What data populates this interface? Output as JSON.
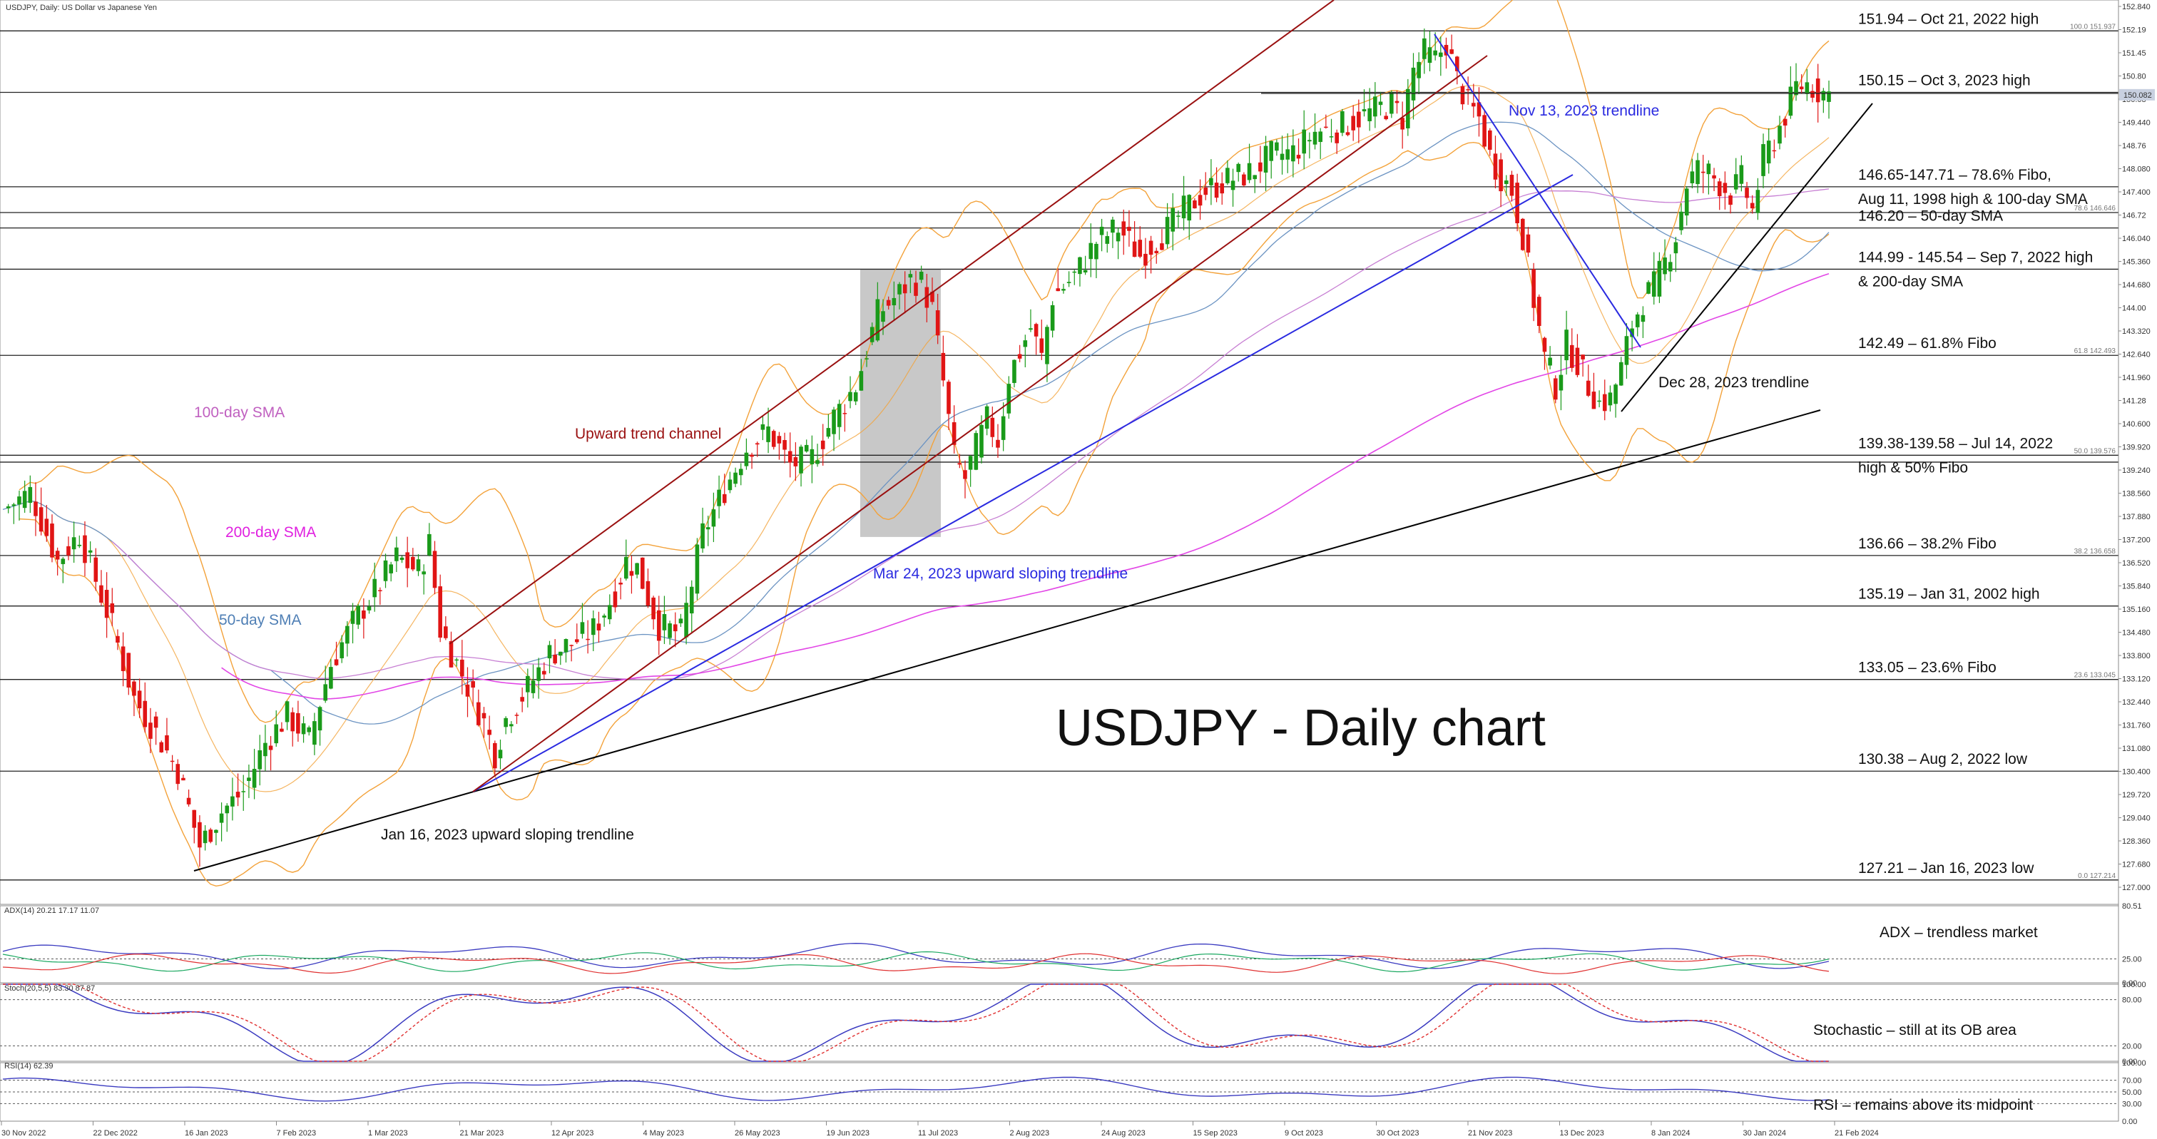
{
  "header": {
    "symbol_line": "USDJPY, Daily:  US Dollar vs Japanese Yen",
    "adx_line": "ADX(14) 20.21 17.17 11.07",
    "stoch_line": "Stoch(20,5,5) 83.30 87.87",
    "rsi_line": "RSI(14) 62.39"
  },
  "chart_data": {
    "type": "candlestick",
    "title": "USDJPY - Daily chart",
    "xlabel": "",
    "ylabel": "",
    "ylim": [
      126.5,
      152.84
    ],
    "price_ticks": [
      "152.840",
      "152.19",
      "151.45",
      "150.80",
      "150.08",
      "149.440",
      "148.76",
      "148.080",
      "147.400",
      "146.72",
      "146.040",
      "145.360",
      "144.680",
      "144.00",
      "143.320",
      "142.640",
      "141.960",
      "141.28",
      "140.600",
      "139.920",
      "139.240",
      "138.560",
      "137.880",
      "137.200",
      "136.520",
      "135.840",
      "135.160",
      "134.480",
      "133.800",
      "133.120",
      "132.440",
      "131.760",
      "131.080",
      "130.400",
      "129.720",
      "129.040",
      "128.360",
      "127.680",
      "127.000"
    ],
    "current_price": "150.082",
    "x_ticks": [
      "30 Nov 2022",
      "22 Dec 2022",
      "16 Jan 2023",
      "7 Feb 2023",
      "1 Mar 2023",
      "21 Mar 2023",
      "12 Apr 2023",
      "4 May 2023",
      "26 May 2023",
      "19 Jun 2023",
      "11 Jul 2023",
      "2 Aug 2023",
      "24 Aug 2023",
      "15 Sep 2023",
      "9 Oct 2023",
      "30 Oct 2023",
      "21 Nov 2023",
      "13 Dec 2023",
      "8 Jan 2024",
      "30 Jan 2024",
      "21 Feb 2024"
    ],
    "horizontal_levels": [
      {
        "price": 151.94,
        "label": "151.94 – Oct 21, 2022 high",
        "fibo": "100.0 151.937"
      },
      {
        "price": 150.15,
        "label": "150.15 – Oct 3, 2023 high",
        "fibo": ""
      },
      {
        "price": 147.4,
        "label": "146.65-147.71 – 78.6% Fibo,",
        "label2": "Aug 11, 1998 high & 100-day SMA",
        "fibo": ""
      },
      {
        "price": 146.65,
        "label": "",
        "fibo": "78.6 146.646"
      },
      {
        "price": 146.2,
        "label": "146.20 – 50-day SMA",
        "fibo": ""
      },
      {
        "price": 145.0,
        "label": "144.99 - 145.54 – Sep 7, 2022 high",
        "label2": "& 200-day SMA",
        "fibo": ""
      },
      {
        "price": 142.49,
        "label": "142.49 – 61.8% Fibo",
        "fibo": "61.8 142.493"
      },
      {
        "price": 139.58,
        "label": "139.38-139.58 – Jul 14, 2022",
        "label2": "high & 50% Fibo",
        "fibo": "50.0 139.576"
      },
      {
        "price": 139.38,
        "label": "",
        "fibo": ""
      },
      {
        "price": 136.66,
        "label": "136.66 – 38.2% Fibo",
        "fibo": "38.2 136.658"
      },
      {
        "price": 135.19,
        "label": "135.19 – Jan 31, 2002 high",
        "fibo": ""
      },
      {
        "price": 133.05,
        "label": "133.05 – 23.6% Fibo",
        "fibo": "23.6 133.045"
      },
      {
        "price": 130.38,
        "label": "130.38 – Aug 2, 2022 low",
        "fibo": ""
      },
      {
        "price": 127.21,
        "label": "127.21 – Jan 16, 2023 low",
        "fibo": "0.0 127.214"
      }
    ],
    "annotations": {
      "sma100": "100-day SMA",
      "sma200": "200-day SMA",
      "sma50": "50-day SMA",
      "channel": "Upward trend channel",
      "nov13": "Nov 13, 2023 trendline",
      "dec28": "Dec 28, 2023 trendline",
      "mar24": "Mar 24, 2023 upward sloping trendline",
      "jan16": "Jan 16, 2023 upward sloping trendline"
    },
    "close_points": [
      [
        0,
        138.0
      ],
      [
        5,
        138.5
      ],
      [
        10,
        136.5
      ],
      [
        14,
        137.3
      ],
      [
        20,
        134.6
      ],
      [
        24,
        132.5
      ],
      [
        28,
        131.5
      ],
      [
        32,
        130.4
      ],
      [
        36,
        128.2
      ],
      [
        40,
        129.2
      ],
      [
        44,
        129.8
      ],
      [
        48,
        131.2
      ],
      [
        52,
        132.0
      ],
      [
        56,
        131.3
      ],
      [
        60,
        133.5
      ],
      [
        64,
        134.7
      ],
      [
        68,
        135.6
      ],
      [
        72,
        136.6
      ],
      [
        76,
        136.2
      ],
      [
        78,
        137.0
      ],
      [
        80,
        134.5
      ],
      [
        84,
        133.2
      ],
      [
        88,
        131.8
      ],
      [
        90,
        130.9
      ],
      [
        92,
        131.9
      ],
      [
        96,
        132.8
      ],
      [
        100,
        133.8
      ],
      [
        104,
        134.1
      ],
      [
        108,
        134.5
      ],
      [
        112,
        135.6
      ],
      [
        114,
        136.5
      ],
      [
        116,
        136.3
      ],
      [
        120,
        134.6
      ],
      [
        124,
        134.4
      ],
      [
        128,
        137.3
      ],
      [
        132,
        138.6
      ],
      [
        136,
        139.8
      ],
      [
        140,
        140.3
      ],
      [
        144,
        139.3
      ],
      [
        148,
        139.5
      ],
      [
        152,
        140.7
      ],
      [
        156,
        141.6
      ],
      [
        160,
        143.7
      ],
      [
        164,
        144.3
      ],
      [
        166,
        144.7
      ],
      [
        168,
        144.6
      ],
      [
        170,
        143.8
      ],
      [
        172,
        141.7
      ],
      [
        174,
        139.5
      ],
      [
        176,
        138.9
      ],
      [
        178,
        139.8
      ],
      [
        180,
        140.6
      ],
      [
        182,
        140.0
      ],
      [
        184,
        141.9
      ],
      [
        188,
        143.3
      ],
      [
        190,
        142.4
      ],
      [
        192,
        144.2
      ],
      [
        196,
        144.8
      ],
      [
        200,
        145.8
      ],
      [
        204,
        146.2
      ],
      [
        208,
        145.4
      ],
      [
        212,
        146.0
      ],
      [
        216,
        146.7
      ],
      [
        220,
        147.3
      ],
      [
        224,
        147.6
      ],
      [
        228,
        147.8
      ],
      [
        232,
        148.3
      ],
      [
        236,
        148.4
      ],
      [
        240,
        149.0
      ],
      [
        244,
        149.1
      ],
      [
        248,
        149.4
      ],
      [
        252,
        149.7
      ],
      [
        254,
        149.8
      ],
      [
        256,
        149.4
      ],
      [
        258,
        150.8
      ],
      [
        260,
        151.3
      ],
      [
        262,
        151.1
      ],
      [
        264,
        151.6
      ],
      [
        266,
        150.5
      ],
      [
        268,
        149.8
      ],
      [
        270,
        149.4
      ],
      [
        272,
        148.3
      ],
      [
        274,
        147.7
      ],
      [
        276,
        147.3
      ],
      [
        278,
        146.0
      ],
      [
        280,
        144.1
      ],
      [
        282,
        142.4
      ],
      [
        284,
        141.6
      ],
      [
        286,
        142.8
      ],
      [
        288,
        142.3
      ],
      [
        290,
        141.6
      ],
      [
        292,
        141.1
      ],
      [
        294,
        141.2
      ],
      [
        296,
        142.1
      ],
      [
        298,
        143.4
      ],
      [
        300,
        144.1
      ],
      [
        302,
        144.5
      ],
      [
        304,
        145.2
      ],
      [
        306,
        146.0
      ],
      [
        308,
        147.5
      ],
      [
        310,
        147.9
      ],
      [
        312,
        147.8
      ],
      [
        314,
        147.5
      ],
      [
        316,
        147.2
      ],
      [
        318,
        147.6
      ],
      [
        320,
        146.7
      ],
      [
        322,
        148.2
      ],
      [
        324,
        148.8
      ],
      [
        326,
        149.5
      ],
      [
        328,
        150.3
      ],
      [
        330,
        150.4
      ],
      [
        332,
        150.2
      ],
      [
        334,
        150.1
      ]
    ],
    "indicators": {
      "adx": {
        "ylim": [
          0,
          80.51
        ],
        "ticks": [
          "80.51",
          "25.00",
          "0.00"
        ],
        "values": [
          20.21,
          17.17,
          11.07
        ]
      },
      "stochastic": {
        "ylim": [
          0,
          100
        ],
        "ticks": [
          "100.00",
          "80.00",
          "20.00",
          "0.00"
        ],
        "values": [
          83.3,
          87.87
        ]
      },
      "rsi": {
        "ylim": [
          0,
          100
        ],
        "ticks": [
          "100.00",
          "70.00",
          "50.00",
          "30.00",
          "0.00"
        ],
        "values": [
          62.39
        ]
      }
    },
    "indicator_notes": {
      "adx": "ADX – trendless market",
      "stoch": "Stochastic – still at its OB area",
      "rsi": "RSI – remains above its midpoint"
    },
    "colors": {
      "bull": "#1a9a1a",
      "bear": "#e01515",
      "bollinger": "#f3a23a",
      "sma50": "#6b93c2",
      "sma100": "#c77fd3",
      "sma200": "#e246e6",
      "channel": "#9a1010",
      "blue_trend": "#2a2ae0",
      "black_trend": "#000000"
    }
  }
}
